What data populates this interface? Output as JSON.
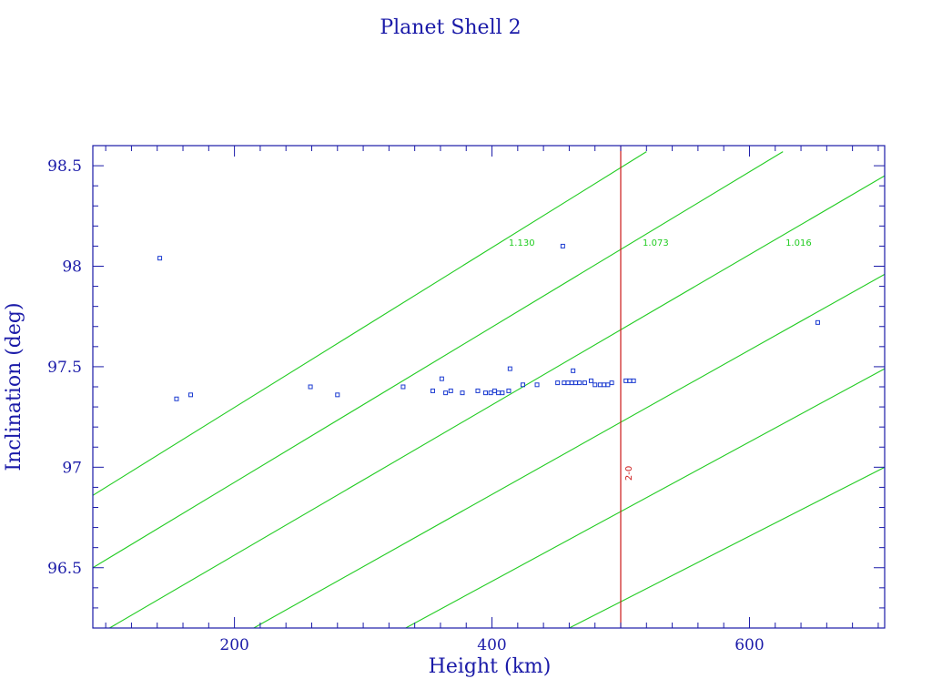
{
  "chart_data": {
    "type": "scatter",
    "title": "Planet Shell 2",
    "xlabel": "Height (km)",
    "ylabel": "Inclination (deg)",
    "xlim": [
      90,
      705
    ],
    "ylim": [
      96.2,
      98.6
    ],
    "x_ticks": [
      200,
      400,
      600
    ],
    "y_ticks": [
      96.5,
      97,
      97.5,
      98,
      98.5
    ],
    "colors": {
      "frame": "#1a1aa8",
      "points": "#1a3ad0",
      "contours": "#22cc22",
      "marker_line": "#cc1a1a"
    },
    "points": [
      {
        "x": 142,
        "y": 98.04
      },
      {
        "x": 155,
        "y": 97.34
      },
      {
        "x": 166,
        "y": 97.36
      },
      {
        "x": 259,
        "y": 97.4
      },
      {
        "x": 280,
        "y": 97.36
      },
      {
        "x": 331,
        "y": 97.4
      },
      {
        "x": 354,
        "y": 97.38
      },
      {
        "x": 361,
        "y": 97.44
      },
      {
        "x": 364,
        "y": 97.37
      },
      {
        "x": 368,
        "y": 97.38
      },
      {
        "x": 377,
        "y": 97.37
      },
      {
        "x": 389,
        "y": 97.38
      },
      {
        "x": 395,
        "y": 97.37
      },
      {
        "x": 399,
        "y": 97.37
      },
      {
        "x": 402,
        "y": 97.38
      },
      {
        "x": 405,
        "y": 97.37
      },
      {
        "x": 408,
        "y": 97.37
      },
      {
        "x": 413,
        "y": 97.38
      },
      {
        "x": 414,
        "y": 97.49
      },
      {
        "x": 424,
        "y": 97.41
      },
      {
        "x": 435,
        "y": 97.41
      },
      {
        "x": 451,
        "y": 97.42
      },
      {
        "x": 455,
        "y": 98.1
      },
      {
        "x": 456,
        "y": 97.42
      },
      {
        "x": 459,
        "y": 97.42
      },
      {
        "x": 462,
        "y": 97.42
      },
      {
        "x": 463,
        "y": 97.48
      },
      {
        "x": 465,
        "y": 97.42
      },
      {
        "x": 468,
        "y": 97.42
      },
      {
        "x": 472,
        "y": 97.42
      },
      {
        "x": 477,
        "y": 97.43
      },
      {
        "x": 480,
        "y": 97.41
      },
      {
        "x": 484,
        "y": 97.41
      },
      {
        "x": 487,
        "y": 97.41
      },
      {
        "x": 490,
        "y": 97.41
      },
      {
        "x": 493,
        "y": 97.42
      },
      {
        "x": 504,
        "y": 97.43
      },
      {
        "x": 507,
        "y": 97.43
      },
      {
        "x": 510,
        "y": 97.43
      },
      {
        "x": 653,
        "y": 97.72
      }
    ],
    "contour_lines": [
      {
        "label": "1.130",
        "points": [
          [
            90,
            96.86
          ],
          [
            520,
            98.57
          ]
        ]
      },
      {
        "label": "1.073",
        "points": [
          [
            90,
            96.5
          ],
          [
            626,
            98.57
          ]
        ]
      },
      {
        "label": "1.016",
        "points": [
          [
            103,
            96.2
          ],
          [
            705,
            98.45
          ]
        ]
      },
      {
        "label": "",
        "points": [
          [
            215,
            96.2
          ],
          [
            705,
            97.96
          ]
        ]
      },
      {
        "label": "",
        "points": [
          [
            333,
            96.2
          ],
          [
            705,
            97.49
          ]
        ]
      },
      {
        "label": "",
        "points": [
          [
            460,
            96.2
          ],
          [
            705,
            97.0
          ]
        ]
      }
    ],
    "contour_label_positions": [
      {
        "text": "1.130",
        "x": 413,
        "y": 98.12
      },
      {
        "text": "1.073",
        "x": 517,
        "y": 98.12
      },
      {
        "text": "1.016",
        "x": 628,
        "y": 98.12
      }
    ],
    "vertical_marker": {
      "x": 500,
      "label": "2-0"
    }
  }
}
